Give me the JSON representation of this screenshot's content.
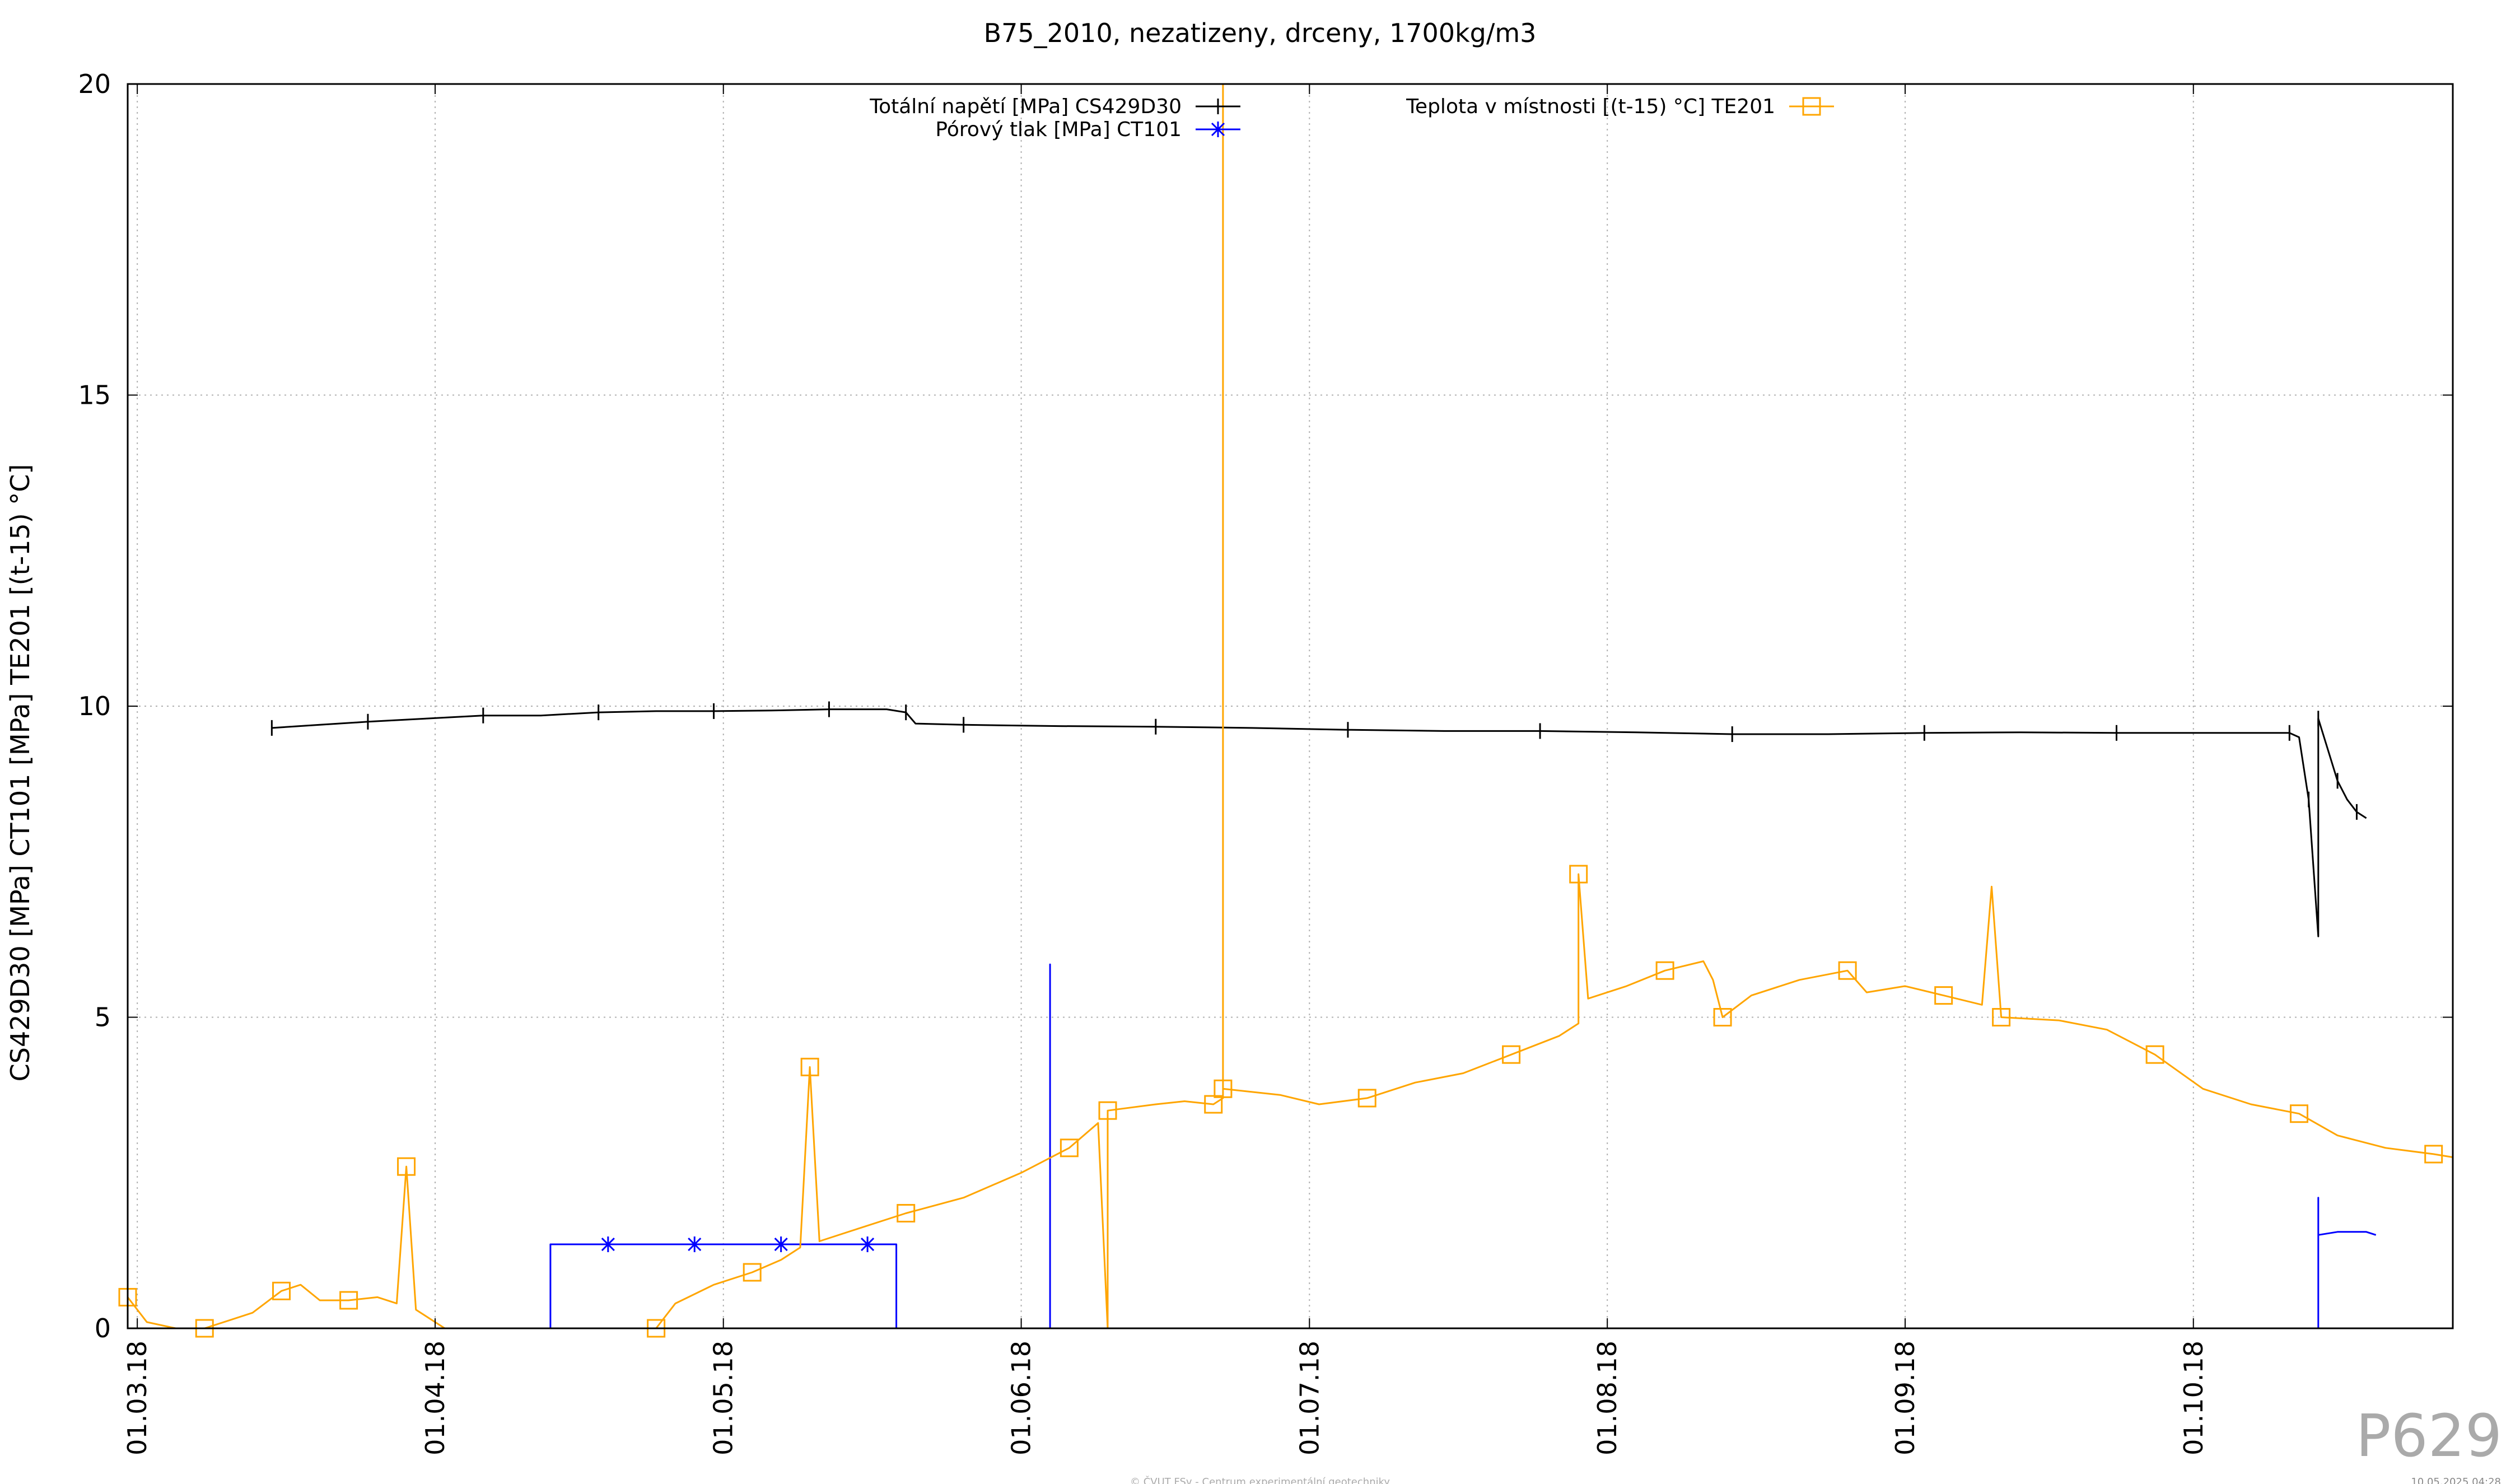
{
  "chart_data": {
    "type": "line",
    "title": "B75_2010, nezatizeny, drceny, 1700kg/m3",
    "ylabel": "CS429D30 [MPa] CT101 [MPa] TE201 [(t-15) °C]",
    "xlabel": "",
    "x_range": [
      "2018-02-28",
      "2018-10-28"
    ],
    "ylim": [
      0,
      20
    ],
    "y_ticks": [
      0,
      5,
      10,
      15,
      20
    ],
    "x_ticks": [
      {
        "date": "2018-03-01",
        "label": "01.03.18"
      },
      {
        "date": "2018-04-01",
        "label": "01.04.18"
      },
      {
        "date": "2018-05-01",
        "label": "01.05.18"
      },
      {
        "date": "2018-06-01",
        "label": "01.06.18"
      },
      {
        "date": "2018-07-01",
        "label": "01.07.18"
      },
      {
        "date": "2018-08-01",
        "label": "01.08.18"
      },
      {
        "date": "2018-09-01",
        "label": "01.09.18"
      },
      {
        "date": "2018-10-01",
        "label": "01.10.18"
      }
    ],
    "grid": true,
    "legend_placement": "top",
    "series": [
      {
        "name": "Totální napětí [MPa] CS429D30",
        "color": "#000000",
        "marker": "plus",
        "points": [
          [
            "2018-03-15",
            9.65
          ],
          [
            "2018-03-20",
            9.7
          ],
          [
            "2018-03-25",
            9.75
          ],
          [
            "2018-03-31",
            9.8
          ],
          [
            "2018-04-06",
            9.85
          ],
          [
            "2018-04-12",
            9.85
          ],
          [
            "2018-04-18",
            9.9
          ],
          [
            "2018-04-24",
            9.92
          ],
          [
            "2018-04-30",
            9.92
          ],
          [
            "2018-05-06",
            9.93
          ],
          [
            "2018-05-12",
            9.95
          ],
          [
            "2018-05-18",
            9.95
          ],
          [
            "2018-05-20",
            9.9
          ],
          [
            "2018-05-21",
            9.72
          ],
          [
            "2018-05-26",
            9.7
          ],
          [
            "2018-06-05",
            9.68
          ],
          [
            "2018-06-15",
            9.67
          ],
          [
            "2018-06-25",
            9.65
          ],
          [
            "2018-07-05",
            9.62
          ],
          [
            "2018-07-15",
            9.6
          ],
          [
            "2018-07-25",
            9.6
          ],
          [
            "2018-08-04",
            9.58
          ],
          [
            "2018-08-14",
            9.55
          ],
          [
            "2018-08-24",
            9.55
          ],
          [
            "2018-09-03",
            9.57
          ],
          [
            "2018-09-13",
            9.58
          ],
          [
            "2018-09-23",
            9.57
          ],
          [
            "2018-10-03",
            9.57
          ],
          [
            "2018-10-11",
            9.57
          ],
          [
            "2018-10-12",
            9.5
          ],
          [
            "2018-10-13",
            8.5
          ],
          [
            "2018-10-14",
            6.3
          ],
          [
            "2018-10-14",
            9.8
          ],
          [
            "2018-10-15",
            9.3
          ],
          [
            "2018-10-16",
            8.8
          ],
          [
            "2018-10-17",
            8.5
          ],
          [
            "2018-10-18",
            8.3
          ],
          [
            "2018-10-19",
            8.2
          ]
        ]
      },
      {
        "name": "Pórový tlak [MPa] CT101",
        "color": "#0000ff",
        "marker": "star",
        "points": [
          [
            "2018-04-13",
            0
          ],
          [
            "2018-04-13",
            1.35
          ],
          [
            "2018-04-25",
            1.35
          ],
          [
            "2018-05-06",
            1.35
          ],
          [
            "2018-05-15",
            1.35
          ],
          [
            "2018-05-19",
            1.35
          ],
          [
            "2018-05-19",
            0
          ]
        ],
        "points_b": [
          [
            "2018-06-04",
            0
          ],
          [
            "2018-06-04",
            5.85
          ],
          [
            "2018-06-04",
            0
          ]
        ],
        "points_c": [
          [
            "2018-10-14",
            0
          ],
          [
            "2018-10-14",
            2.1
          ],
          [
            "2018-10-14",
            1.5
          ],
          [
            "2018-10-16",
            1.55
          ],
          [
            "2018-10-19",
            1.55
          ],
          [
            "2018-10-20",
            1.5
          ]
        ],
        "marker_points": [
          [
            "2018-04-19",
            1.35
          ],
          [
            "2018-04-28",
            1.35
          ],
          [
            "2018-05-07",
            1.35
          ],
          [
            "2018-05-16",
            1.35
          ]
        ]
      },
      {
        "name": "Teplota v místnosti [(t-15) °C] TE201",
        "color": "#ffa500",
        "marker": "square",
        "points": [
          [
            "2018-02-28",
            0.5
          ],
          [
            "2018-03-02",
            0.1
          ],
          [
            "2018-03-05",
            0.0
          ],
          [
            "2018-03-08",
            0.0
          ],
          [
            "2018-03-10",
            0.1
          ],
          [
            "2018-03-13",
            0.25
          ],
          [
            "2018-03-16",
            0.6
          ],
          [
            "2018-03-18",
            0.7
          ],
          [
            "2018-03-20",
            0.45
          ],
          [
            "2018-03-23",
            0.45
          ],
          [
            "2018-03-26",
            0.5
          ],
          [
            "2018-03-28",
            0.4
          ],
          [
            "2018-03-29",
            2.6
          ],
          [
            "2018-03-30",
            0.3
          ],
          [
            "2018-04-02",
            0.0
          ],
          [
            "2018-04-24",
            0.0
          ],
          [
            "2018-04-26",
            0.4
          ],
          [
            "2018-04-30",
            0.7
          ],
          [
            "2018-05-04",
            0.9
          ],
          [
            "2018-05-07",
            1.1
          ],
          [
            "2018-05-09",
            1.3
          ],
          [
            "2018-05-10",
            4.2
          ],
          [
            "2018-05-11",
            1.4
          ],
          [
            "2018-05-15",
            1.6
          ],
          [
            "2018-05-20",
            1.85
          ],
          [
            "2018-05-26",
            2.1
          ],
          [
            "2018-06-01",
            2.5
          ],
          [
            "2018-06-06",
            2.9
          ],
          [
            "2018-06-09",
            3.3
          ],
          [
            "2018-06-10",
            0.0
          ],
          [
            "2018-06-10",
            3.5
          ],
          [
            "2018-06-15",
            3.6
          ],
          [
            "2018-06-18",
            3.65
          ],
          [
            "2018-06-21",
            3.6
          ],
          [
            "2018-06-22",
            3.7
          ],
          [
            "2018-06-22",
            20.0
          ],
          [
            "2018-06-22",
            3.85
          ],
          [
            "2018-06-28",
            3.75
          ],
          [
            "2018-07-02",
            3.6
          ],
          [
            "2018-07-07",
            3.7
          ],
          [
            "2018-07-12",
            3.95
          ],
          [
            "2018-07-17",
            4.1
          ],
          [
            "2018-07-22",
            4.4
          ],
          [
            "2018-07-27",
            4.7
          ],
          [
            "2018-07-29",
            4.9
          ],
          [
            "2018-07-29",
            7.3
          ],
          [
            "2018-07-30",
            5.3
          ],
          [
            "2018-08-03",
            5.5
          ],
          [
            "2018-08-07",
            5.75
          ],
          [
            "2018-08-11",
            5.9
          ],
          [
            "2018-08-12",
            5.6
          ],
          [
            "2018-08-13",
            5.0
          ],
          [
            "2018-08-16",
            5.35
          ],
          [
            "2018-08-21",
            5.6
          ],
          [
            "2018-08-26",
            5.75
          ],
          [
            "2018-08-28",
            5.4
          ],
          [
            "2018-09-01",
            5.5
          ],
          [
            "2018-09-05",
            5.35
          ],
          [
            "2018-09-09",
            5.2
          ],
          [
            "2018-09-10",
            7.1
          ],
          [
            "2018-09-11",
            5.0
          ],
          [
            "2018-09-17",
            4.95
          ],
          [
            "2018-09-22",
            4.8
          ],
          [
            "2018-09-27",
            4.4
          ],
          [
            "2018-10-02",
            3.85
          ],
          [
            "2018-10-07",
            3.6
          ],
          [
            "2018-10-12",
            3.45
          ],
          [
            "2018-10-16",
            3.1
          ],
          [
            "2018-10-21",
            2.9
          ],
          [
            "2018-10-26",
            2.8
          ],
          [
            "2018-10-28",
            2.75
          ]
        ]
      }
    ]
  },
  "watermark_id": "P629",
  "footer_copyright": "© ČVUT FSv - Centrum experimentální geotechniky",
  "footer_timestamp": "10.05.2025 04:28"
}
